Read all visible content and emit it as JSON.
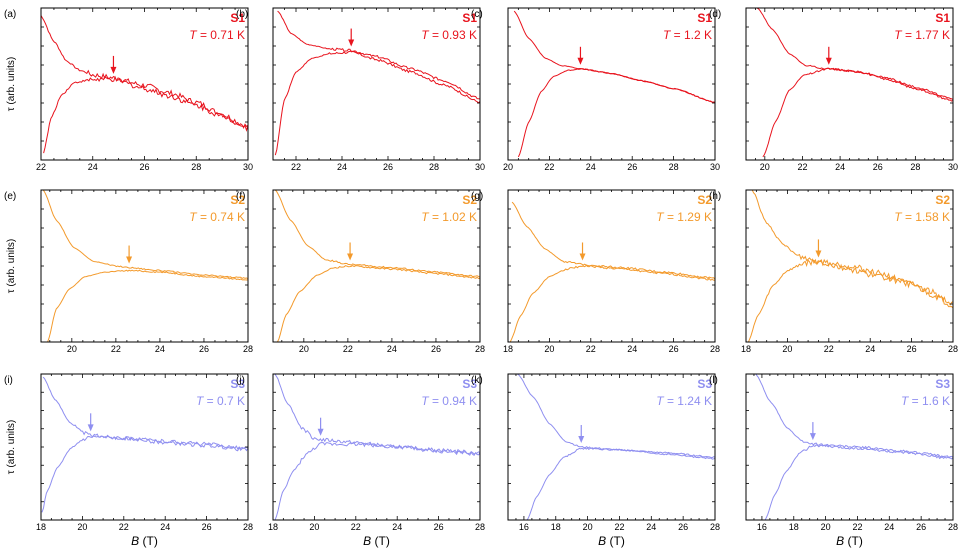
{
  "figure": {
    "ylabel": "τ (arb. units)",
    "xlabel_symbol": "B",
    "xlabel_unit": " (T)",
    "temp_prefix": "T",
    "temp_suffix": " K"
  },
  "chart_data": [
    {
      "type": "line",
      "panel": "(a)",
      "sample": "S1",
      "temperature": "0.71",
      "color": "#e8141e",
      "xlim": [
        22,
        30
      ],
      "ticks": [
        22,
        24,
        26,
        28,
        30
      ],
      "crossing": 24.8,
      "ylim": [
        0,
        1
      ],
      "upper": [
        [
          22,
          0.95
        ],
        [
          22.5,
          0.78
        ],
        [
          23,
          0.65
        ],
        [
          23.5,
          0.59
        ],
        [
          24,
          0.56
        ],
        [
          24.8,
          0.54
        ],
        [
          26,
          0.49
        ],
        [
          27,
          0.44
        ],
        [
          28,
          0.38
        ],
        [
          29,
          0.3
        ],
        [
          30,
          0.22
        ]
      ],
      "lower": [
        [
          22.1,
          0.05
        ],
        [
          22.4,
          0.28
        ],
        [
          22.8,
          0.43
        ],
        [
          23.3,
          0.51
        ],
        [
          24,
          0.53
        ],
        [
          24.8,
          0.53
        ],
        [
          26,
          0.47
        ],
        [
          27,
          0.42
        ],
        [
          28,
          0.36
        ],
        [
          29,
          0.29
        ],
        [
          30,
          0.21
        ]
      ],
      "wiggle": 0.018,
      "seed": 1
    },
    {
      "type": "line",
      "panel": "(b)",
      "sample": "S1",
      "temperature": "0.93",
      "color": "#e8141e",
      "xlim": [
        21,
        30
      ],
      "ticks": [
        22,
        24,
        26,
        28,
        30
      ],
      "crossing": 24.4,
      "ylim": [
        0,
        1
      ],
      "upper": [
        [
          21.2,
          0.98
        ],
        [
          21.8,
          0.83
        ],
        [
          22.5,
          0.76
        ],
        [
          23.5,
          0.73
        ],
        [
          24.4,
          0.72
        ],
        [
          25.5,
          0.68
        ],
        [
          27,
          0.6
        ],
        [
          28.5,
          0.52
        ],
        [
          30,
          0.4
        ]
      ],
      "lower": [
        [
          21.1,
          0.03
        ],
        [
          21.5,
          0.4
        ],
        [
          22,
          0.58
        ],
        [
          22.7,
          0.67
        ],
        [
          23.5,
          0.7
        ],
        [
          24.4,
          0.71
        ],
        [
          25.5,
          0.66
        ],
        [
          27,
          0.58
        ],
        [
          28.5,
          0.49
        ],
        [
          30,
          0.38
        ]
      ],
      "wiggle": 0.008,
      "seed": 2
    },
    {
      "type": "line",
      "panel": "(c)",
      "sample": "S1",
      "temperature": "1.2",
      "color": "#e8141e",
      "xlim": [
        20,
        30
      ],
      "ticks": [
        20,
        22,
        24,
        26,
        28,
        30
      ],
      "crossing": 23.5,
      "ylim": [
        0,
        1
      ],
      "upper": [
        [
          20.3,
          0.98
        ],
        [
          21,
          0.8
        ],
        [
          21.8,
          0.67
        ],
        [
          22.6,
          0.62
        ],
        [
          23.5,
          0.6
        ],
        [
          25,
          0.57
        ],
        [
          26.5,
          0.52
        ],
        [
          28,
          0.47
        ],
        [
          30,
          0.38
        ]
      ],
      "lower": [
        [
          20.5,
          0.02
        ],
        [
          21,
          0.25
        ],
        [
          21.6,
          0.45
        ],
        [
          22.2,
          0.55
        ],
        [
          22.9,
          0.59
        ],
        [
          23.5,
          0.6
        ],
        [
          25,
          0.57
        ],
        [
          26.5,
          0.52
        ],
        [
          28,
          0.47
        ],
        [
          30,
          0.38
        ]
      ],
      "wiggle": 0.003,
      "seed": 3
    },
    {
      "type": "line",
      "panel": "(d)",
      "sample": "S1",
      "temperature": "1.77",
      "color": "#e8141e",
      "xlim": [
        19,
        30
      ],
      "ticks": [
        20,
        22,
        24,
        26,
        28,
        30
      ],
      "crossing": 23.4,
      "ylim": [
        0,
        1
      ],
      "upper": [
        [
          19.6,
          1.0
        ],
        [
          20.4,
          0.86
        ],
        [
          21.3,
          0.7
        ],
        [
          22.2,
          0.62
        ],
        [
          23.4,
          0.6
        ],
        [
          25,
          0.58
        ],
        [
          26.5,
          0.54
        ],
        [
          28,
          0.48
        ],
        [
          30,
          0.4
        ]
      ],
      "lower": [
        [
          19.9,
          0.02
        ],
        [
          20.6,
          0.26
        ],
        [
          21.3,
          0.46
        ],
        [
          22.1,
          0.56
        ],
        [
          23.4,
          0.6
        ],
        [
          25,
          0.58
        ],
        [
          26.5,
          0.53
        ],
        [
          28,
          0.47
        ],
        [
          30,
          0.39
        ]
      ],
      "wiggle": 0.006,
      "seed": 4
    },
    {
      "type": "line",
      "panel": "(e)",
      "sample": "S2",
      "temperature": "0.74",
      "color": "#f39a2c",
      "xlim": [
        18.6,
        28
      ],
      "ticks": [
        20,
        22,
        24,
        26,
        28
      ],
      "crossing": 22.6,
      "ylim": [
        0,
        1
      ],
      "upper": [
        [
          18.7,
          1.0
        ],
        [
          19.3,
          0.8
        ],
        [
          20.1,
          0.62
        ],
        [
          21,
          0.53
        ],
        [
          22,
          0.5
        ],
        [
          22.6,
          0.49
        ],
        [
          24,
          0.47
        ],
        [
          26,
          0.44
        ],
        [
          28,
          0.42
        ]
      ],
      "lower": [
        [
          18.9,
          0.0
        ],
        [
          19.3,
          0.22
        ],
        [
          19.9,
          0.35
        ],
        [
          20.6,
          0.43
        ],
        [
          21.5,
          0.46
        ],
        [
          22.6,
          0.47
        ],
        [
          24,
          0.46
        ],
        [
          26,
          0.43
        ],
        [
          28,
          0.41
        ]
      ],
      "wiggle": 0.004,
      "seed": 5
    },
    {
      "type": "line",
      "panel": "(f)",
      "sample": "S2",
      "temperature": "1.02",
      "color": "#f39a2c",
      "xlim": [
        18.6,
        28
      ],
      "ticks": [
        20,
        22,
        24,
        26,
        28
      ],
      "crossing": 22.1,
      "ylim": [
        0,
        1
      ],
      "upper": [
        [
          18.7,
          1.0
        ],
        [
          19.4,
          0.8
        ],
        [
          20.2,
          0.63
        ],
        [
          21,
          0.54
        ],
        [
          22.1,
          0.51
        ],
        [
          24,
          0.49
        ],
        [
          26,
          0.46
        ],
        [
          28,
          0.43
        ]
      ],
      "lower": [
        [
          18.8,
          0.0
        ],
        [
          19.2,
          0.18
        ],
        [
          19.8,
          0.33
        ],
        [
          20.6,
          0.44
        ],
        [
          21.4,
          0.49
        ],
        [
          22.1,
          0.5
        ],
        [
          24,
          0.48
        ],
        [
          26,
          0.45
        ],
        [
          28,
          0.42
        ]
      ],
      "wiggle": 0.005,
      "seed": 6
    },
    {
      "type": "line",
      "panel": "(g)",
      "sample": "S2",
      "temperature": "1.29",
      "color": "#f39a2c",
      "xlim": [
        18,
        28
      ],
      "ticks": [
        18,
        20,
        22,
        24,
        26,
        28
      ],
      "crossing": 21.6,
      "ylim": [
        0,
        1
      ],
      "upper": [
        [
          18.2,
          0.92
        ],
        [
          18.9,
          0.76
        ],
        [
          19.8,
          0.61
        ],
        [
          20.7,
          0.53
        ],
        [
          21.6,
          0.51
        ],
        [
          23.5,
          0.49
        ],
        [
          25.5,
          0.46
        ],
        [
          28,
          0.42
        ]
      ],
      "lower": [
        [
          18.1,
          0.0
        ],
        [
          18.6,
          0.17
        ],
        [
          19.2,
          0.32
        ],
        [
          20,
          0.43
        ],
        [
          20.8,
          0.48
        ],
        [
          21.6,
          0.5
        ],
        [
          23.5,
          0.48
        ],
        [
          25.5,
          0.45
        ],
        [
          28,
          0.41
        ]
      ],
      "wiggle": 0.006,
      "seed": 7
    },
    {
      "type": "line",
      "panel": "(h)",
      "sample": "S2",
      "temperature": "1.58",
      "color": "#f39a2c",
      "xlim": [
        18,
        28
      ],
      "ticks": [
        18,
        20,
        22,
        24,
        26,
        28
      ],
      "crossing": 21.5,
      "ylim": [
        0,
        1
      ],
      "upper": [
        [
          18.3,
          1.0
        ],
        [
          19,
          0.78
        ],
        [
          19.8,
          0.64
        ],
        [
          20.6,
          0.56
        ],
        [
          21.5,
          0.53
        ],
        [
          23,
          0.48
        ],
        [
          24.5,
          0.43
        ],
        [
          26,
          0.38
        ],
        [
          27,
          0.33
        ],
        [
          28,
          0.25
        ]
      ],
      "lower": [
        [
          18.1,
          0.0
        ],
        [
          18.6,
          0.18
        ],
        [
          19.3,
          0.37
        ],
        [
          20,
          0.47
        ],
        [
          20.8,
          0.52
        ],
        [
          21.5,
          0.53
        ],
        [
          23,
          0.5
        ],
        [
          24.5,
          0.45
        ],
        [
          26,
          0.38
        ],
        [
          27,
          0.31
        ],
        [
          28,
          0.24
        ]
      ],
      "wiggle": 0.02,
      "seed": 8
    },
    {
      "type": "line",
      "panel": "(i)",
      "sample": "S3",
      "temperature": "0.7",
      "color": "#8f8ff0",
      "xlim": [
        18,
        28
      ],
      "ticks": [
        18,
        20,
        22,
        24,
        26,
        28
      ],
      "crossing": 20.4,
      "ylim": [
        0,
        1
      ],
      "upper": [
        [
          18.1,
          0.98
        ],
        [
          18.7,
          0.82
        ],
        [
          19.4,
          0.67
        ],
        [
          20,
          0.6
        ],
        [
          20.4,
          0.58
        ],
        [
          22,
          0.56
        ],
        [
          24,
          0.54
        ],
        [
          26,
          0.52
        ],
        [
          28,
          0.49
        ]
      ],
      "lower": [
        [
          18.05,
          0.05
        ],
        [
          18.3,
          0.2
        ],
        [
          18.8,
          0.36
        ],
        [
          19.4,
          0.48
        ],
        [
          20,
          0.55
        ],
        [
          20.4,
          0.57
        ],
        [
          22,
          0.56
        ],
        [
          24,
          0.53
        ],
        [
          26,
          0.51
        ],
        [
          28,
          0.48
        ]
      ],
      "wiggle": 0.012,
      "seed": 9
    },
    {
      "type": "line",
      "panel": "(j)",
      "sample": "S3",
      "temperature": "0.94",
      "color": "#8f8ff0",
      "xlim": [
        18,
        28
      ],
      "ticks": [
        18,
        20,
        22,
        24,
        26,
        28
      ],
      "crossing": 20.3,
      "ylim": [
        0,
        1
      ],
      "upper": [
        [
          18.1,
          1.0
        ],
        [
          18.7,
          0.8
        ],
        [
          19.4,
          0.63
        ],
        [
          20,
          0.56
        ],
        [
          20.3,
          0.55
        ],
        [
          22,
          0.53
        ],
        [
          24,
          0.5
        ],
        [
          26,
          0.48
        ],
        [
          28,
          0.46
        ]
      ],
      "lower": [
        [
          18.1,
          0.0
        ],
        [
          18.5,
          0.2
        ],
        [
          19,
          0.34
        ],
        [
          19.6,
          0.45
        ],
        [
          20.3,
          0.52
        ],
        [
          22,
          0.52
        ],
        [
          24,
          0.5
        ],
        [
          26,
          0.47
        ],
        [
          28,
          0.45
        ]
      ],
      "wiggle": 0.012,
      "seed": 10
    },
    {
      "type": "line",
      "panel": "(k)",
      "sample": "S3",
      "temperature": "1.24",
      "color": "#8f8ff0",
      "xlim": [
        15,
        28
      ],
      "ticks": [
        16,
        18,
        20,
        22,
        24,
        26,
        28
      ],
      "crossing": 19.6,
      "ylim": [
        0,
        1
      ],
      "upper": [
        [
          15.6,
          1.0
        ],
        [
          16.6,
          0.84
        ],
        [
          17.6,
          0.66
        ],
        [
          18.6,
          0.54
        ],
        [
          19.6,
          0.5
        ],
        [
          22,
          0.48
        ],
        [
          25,
          0.46
        ],
        [
          28,
          0.43
        ]
      ],
      "lower": [
        [
          16.2,
          0.0
        ],
        [
          16.8,
          0.16
        ],
        [
          17.6,
          0.31
        ],
        [
          18.5,
          0.43
        ],
        [
          19.6,
          0.49
        ],
        [
          22,
          0.48
        ],
        [
          25,
          0.45
        ],
        [
          28,
          0.42
        ]
      ],
      "wiggle": 0.005,
      "seed": 11
    },
    {
      "type": "line",
      "panel": "(l)",
      "sample": "S3",
      "temperature": "1.6",
      "color": "#8f8ff0",
      "xlim": [
        15,
        28
      ],
      "ticks": [
        16,
        18,
        20,
        22,
        24,
        26,
        28
      ],
      "crossing": 19.2,
      "ylim": [
        0,
        1
      ],
      "upper": [
        [
          15.6,
          1.0
        ],
        [
          16.6,
          0.8
        ],
        [
          17.6,
          0.63
        ],
        [
          18.5,
          0.54
        ],
        [
          19.2,
          0.52
        ],
        [
          22,
          0.5
        ],
        [
          25,
          0.47
        ],
        [
          28,
          0.43
        ]
      ],
      "lower": [
        [
          16.2,
          0.0
        ],
        [
          16.8,
          0.17
        ],
        [
          17.5,
          0.33
        ],
        [
          18.4,
          0.46
        ],
        [
          19.2,
          0.51
        ],
        [
          22,
          0.49
        ],
        [
          25,
          0.46
        ],
        [
          28,
          0.42
        ]
      ],
      "wiggle": 0.008,
      "seed": 12
    }
  ]
}
